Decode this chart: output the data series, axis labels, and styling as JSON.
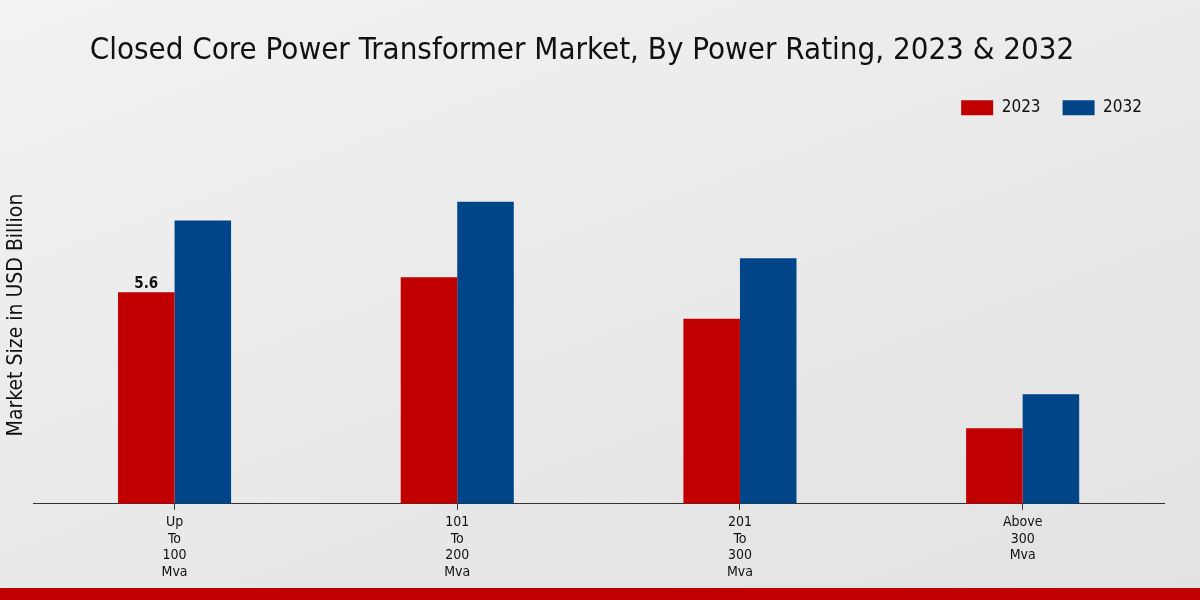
{
  "chart_data": {
    "type": "bar",
    "title": "Closed Core Power Transformer Market, By Power Rating, 2023 & 2032",
    "ylabel": "Market Size in USD Billion",
    "categories": [
      "Up To 100 Mva",
      "101 To 200 Mva",
      "201 To 300 Mva",
      "Above 300 Mva"
    ],
    "tick_labels": "x",
    "legend": "top right",
    "grid": false,
    "series": [
      {
        "name": "2023",
        "color": "#c00000",
        "values": [
          5.6,
          6.0,
          4.9,
          2.0
        ],
        "value_labels": [
          "5.6",
          null,
          null,
          null
        ]
      },
      {
        "name": "2032",
        "color": "#004587",
        "values": [
          7.5,
          8.0,
          6.5,
          2.9
        ]
      }
    ]
  }
}
